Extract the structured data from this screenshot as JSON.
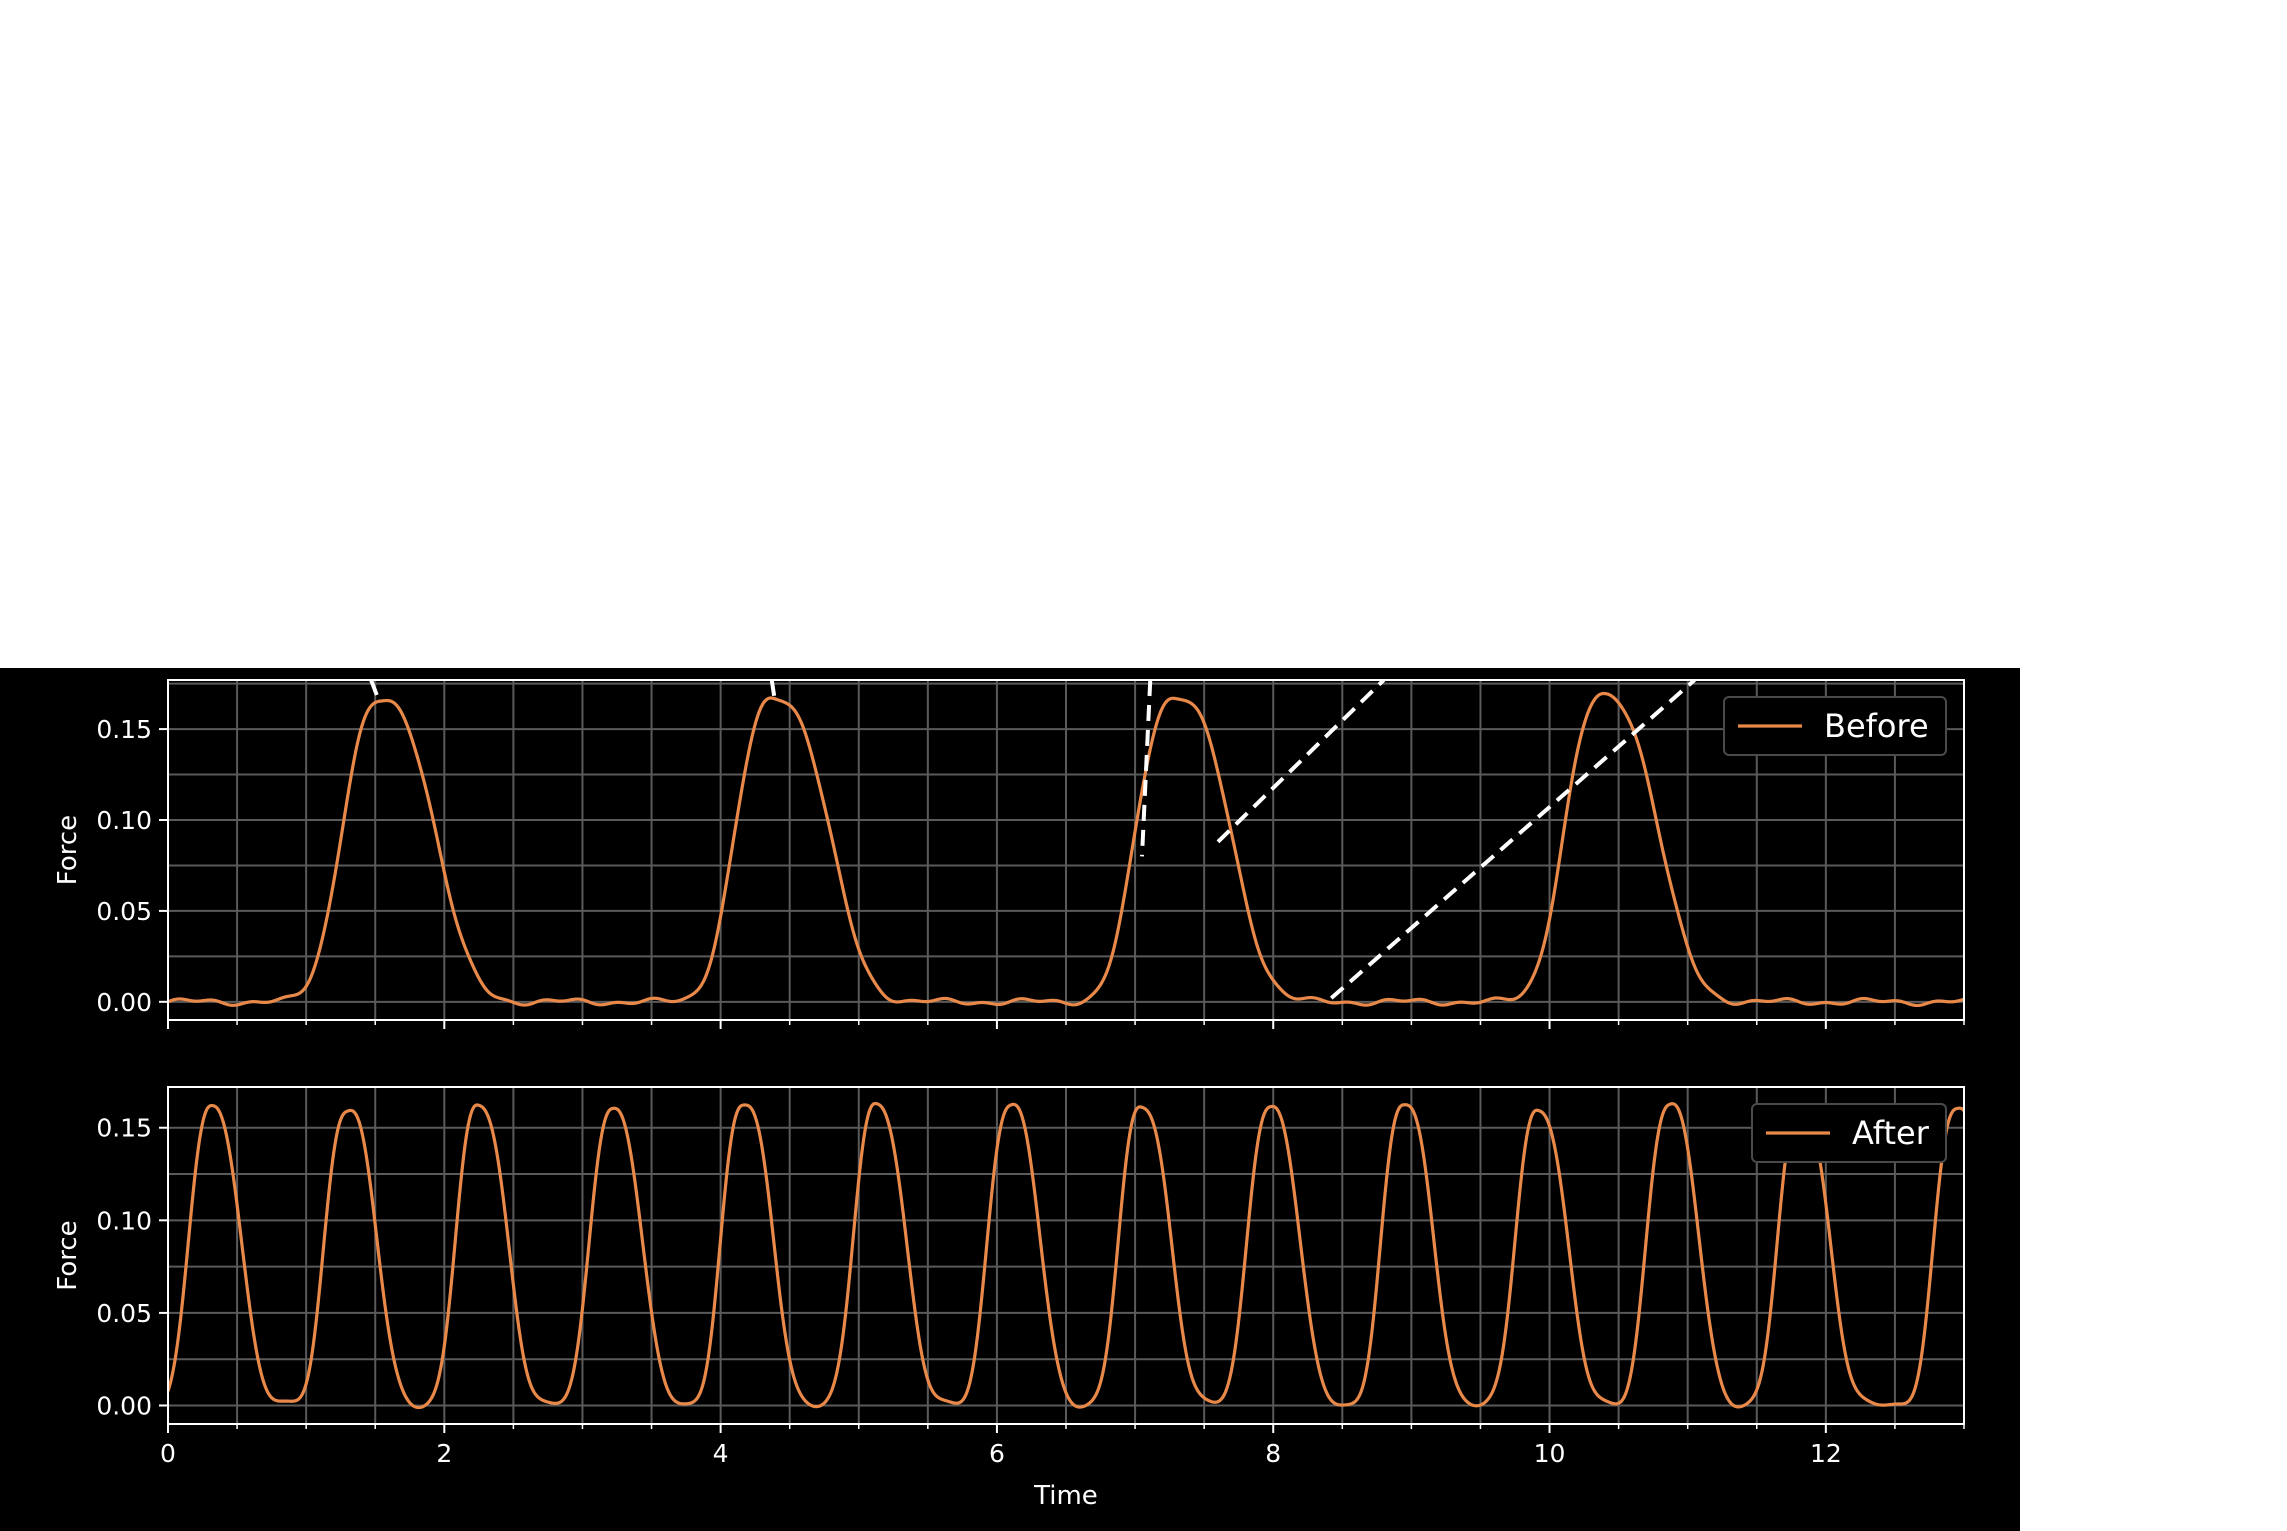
{
  "colors": {
    "background": "#000000",
    "line": "#e8894a",
    "grid": "#5a5a5a",
    "axes": "#ffffff",
    "legend_border": "#4a4a4a",
    "dashed": "#ffffff"
  },
  "chart_data": [
    {
      "type": "line",
      "title": "",
      "xlabel": "",
      "ylabel": "Force",
      "xlim": [
        0,
        13
      ],
      "ylim": [
        -0.01,
        0.177
      ],
      "xticks": [
        0,
        2,
        4,
        6,
        8,
        10,
        12
      ],
      "xtick_labels": [
        "",
        "",
        "",
        "",
        "",
        "",
        ""
      ],
      "yticks": [
        0.0,
        0.05,
        0.1,
        0.15
      ],
      "ytick_labels": [
        "0.00",
        "0.05",
        "0.10",
        "0.15"
      ],
      "grid": true,
      "legend_placement": "top-right",
      "series": [
        {
          "name": "Before",
          "peaks": [
            1.55,
            4.4,
            7.3,
            10.4
          ],
          "peak_heights": [
            0.165,
            0.167,
            0.168,
            0.168
          ],
          "baseline": 0.0,
          "rise_width": 0.28,
          "fall_width": 0.37
        }
      ],
      "annotations": [
        {
          "type": "dashed-line",
          "x": [
            1.47,
            1.52
          ],
          "y": [
            0.177,
            0.167
          ]
        },
        {
          "type": "dashed-line",
          "x": [
            4.37,
            4.39
          ],
          "y": [
            0.177,
            0.167
          ]
        },
        {
          "type": "dashed-line",
          "x": [
            7.11,
            7.05
          ],
          "y": [
            0.177,
            0.08
          ]
        },
        {
          "type": "dashed-line",
          "x": [
            7.6,
            8.8
          ],
          "y": [
            0.088,
            0.177
          ]
        },
        {
          "type": "dashed-line",
          "x": [
            8.42,
            11.05
          ],
          "y": [
            0.002,
            0.177
          ]
        }
      ]
    },
    {
      "type": "line",
      "title": "",
      "xlabel": "Time",
      "ylabel": "Force",
      "xlim": [
        0,
        13
      ],
      "ylim": [
        -0.01,
        0.172
      ],
      "xticks": [
        0,
        2,
        4,
        6,
        8,
        10,
        12
      ],
      "xtick_labels": [
        "0",
        "2",
        "4",
        "6",
        "8",
        "10",
        "12"
      ],
      "yticks": [
        0.0,
        0.05,
        0.1,
        0.15
      ],
      "ytick_labels": [
        "0.00",
        "0.05",
        "0.10",
        "0.15"
      ],
      "grid": true,
      "legend_placement": "top-right",
      "series": [
        {
          "name": "After",
          "peaks": [
            0.32,
            1.3,
            2.25,
            3.22,
            4.17,
            5.13,
            6.1,
            7.05,
            7.98,
            8.95,
            9.92,
            10.87,
            11.82,
            12.95
          ],
          "peak_heights": [
            0.161,
            0.16,
            0.161,
            0.161,
            0.162,
            0.163,
            0.162,
            0.161,
            0.162,
            0.162,
            0.16,
            0.162,
            0.16,
            0.16
          ],
          "baseline": 0.0,
          "rise_width": 0.16,
          "fall_width": 0.2
        }
      ],
      "annotations": []
    }
  ]
}
